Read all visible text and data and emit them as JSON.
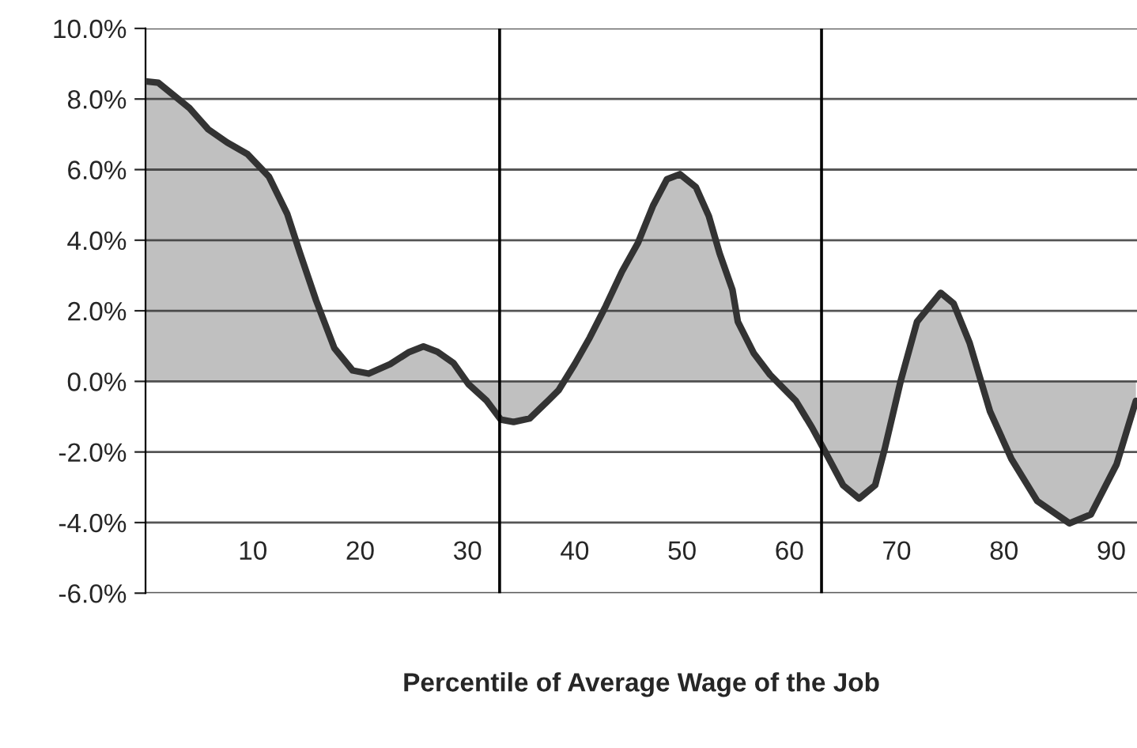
{
  "chart_data": {
    "type": "area",
    "xlabel": "Percentile of Average Wage of the Job",
    "x": [
      0,
      1.2,
      2.65,
      4.1,
      5.85,
      7.6,
      9.5,
      11.5,
      13.2,
      14.4,
      15.9,
      17.6,
      19.3,
      20.8,
      22.8,
      24.5,
      25.9,
      27.2,
      28.7,
      30.1,
      31.8,
      33.1,
      34.3,
      35.8,
      37.5,
      38.5,
      40,
      41.4,
      42.9,
      44.4,
      45.9,
      47.3,
      48.6,
      49.8,
      51.3,
      52.5,
      53.5,
      54.7,
      55.2,
      56.7,
      58.2,
      60.6,
      62.1,
      63.3,
      65.0,
      66.5,
      68.0,
      68.9,
      70.4,
      71.9,
      74.1,
      75.3,
      76.8,
      78.7,
      80.7,
      83.1,
      86.1,
      88.1,
      90.5,
      92.3
    ],
    "series": [
      {
        "color": "#333333",
        "values": [
          8.5,
          8.46,
          8.1,
          7.74,
          7.14,
          6.77,
          6.44,
          5.8,
          4.75,
          3.63,
          2.29,
          0.94,
          0.31,
          0.22,
          0.49,
          0.82,
          0.99,
          0.84,
          0.52,
          -0.08,
          -0.55,
          -1.08,
          -1.15,
          -1.05,
          -0.55,
          -0.25,
          0.49,
          1.24,
          2.14,
          3.11,
          3.93,
          4.98,
          5.73,
          5.87,
          5.5,
          4.68,
          3.63,
          2.59,
          1.69,
          0.79,
          0.19,
          -0.55,
          -1.3,
          -1.97,
          -2.94,
          -3.32,
          -2.94,
          -1.9,
          0.04,
          1.69,
          2.51,
          2.21,
          1.09,
          -0.85,
          -2.2,
          -3.39,
          -4.02,
          -3.77,
          -2.35,
          -0.55
        ]
      }
    ],
    "xlim": [
      0,
      92.4
    ],
    "xticks": [
      10,
      20,
      30,
      40,
      50,
      60,
      70,
      80,
      90
    ],
    "ylim": [
      -6,
      10
    ],
    "yticks": [
      {
        "value": -6,
        "label": "-6.0%"
      },
      {
        "value": -4,
        "label": "-4.0%"
      },
      {
        "value": -2,
        "label": "-2.0%"
      },
      {
        "value": 0,
        "label": "0.0%"
      },
      {
        "value": 2,
        "label": "2.0%"
      },
      {
        "value": 4,
        "label": "4.0%"
      },
      {
        "value": 6,
        "label": "6.0%"
      },
      {
        "value": 8,
        "label": "8.0%"
      },
      {
        "value": 10,
        "label": "10.0%"
      }
    ],
    "grid": "y",
    "ref_lines": [
      {
        "axis": "x",
        "value": 33,
        "color": "#000000"
      },
      {
        "axis": "x",
        "value": 63,
        "color": "#000000"
      }
    ],
    "line_style": "solid"
  }
}
